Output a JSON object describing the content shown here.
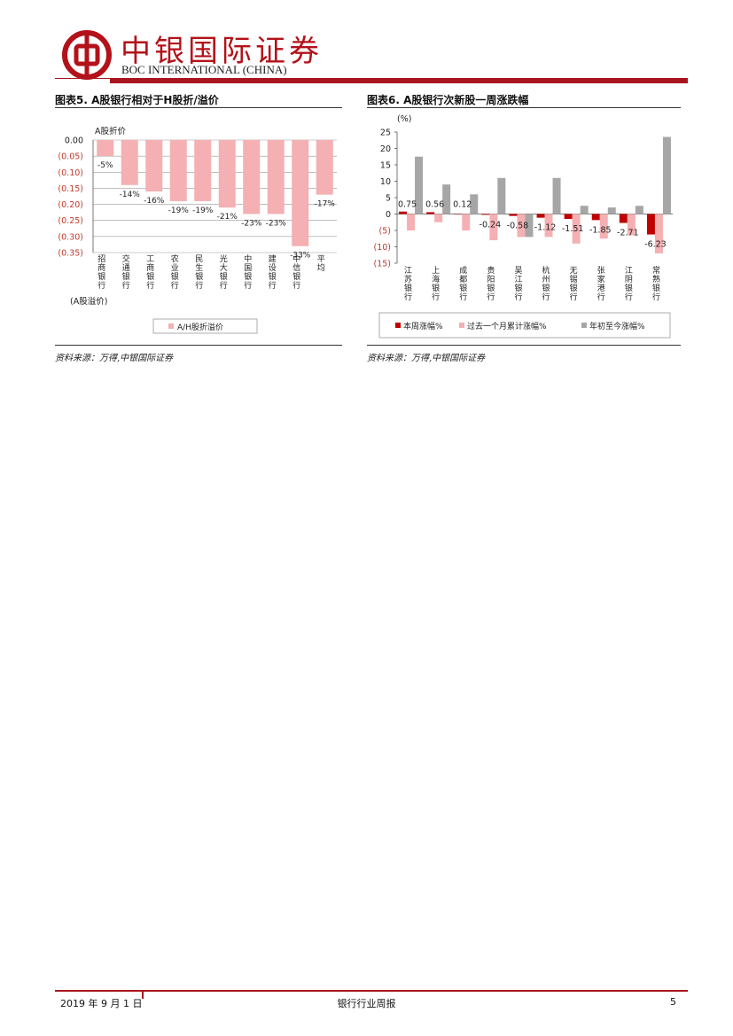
{
  "header": {
    "brand_cn": "中银国际证券",
    "brand_en": "BOC INTERNATIONAL (CHINA)",
    "brand_color": "#b3121a"
  },
  "figure5": {
    "title": "图表5. A股银行相对于H股折/溢价",
    "source": "资料来源：万得,中银国际证券",
    "y_axis_caption_top": "A股折价",
    "y_axis_caption_bottom": "(A股溢价)",
    "legend_label": "A/H股折溢价",
    "bar_color": "#f4b0b2",
    "chart_data": {
      "type": "bar",
      "categories": [
        "招商银行",
        "交通银行",
        "工商银行",
        "农业银行",
        "民生银行",
        "光大银行",
        "中国银行",
        "建设银行",
        "中信银行",
        "平均"
      ],
      "values": [
        -0.05,
        -0.14,
        -0.16,
        -0.19,
        -0.19,
        -0.21,
        -0.23,
        -0.23,
        -0.33,
        -0.17
      ],
      "data_labels": [
        "-5%",
        "-14%",
        "-16%",
        "-19%",
        "-19%",
        "-21%",
        "-23%",
        "-23%",
        "-33%",
        "-17%"
      ],
      "yticks": [
        "0.00",
        "(0.05)",
        "(0.10)",
        "(0.15)",
        "(0.20)",
        "(0.25)",
        "(0.30)",
        "(0.35)"
      ],
      "ylim": [
        -0.35,
        0
      ],
      "grid": true
    }
  },
  "figure6": {
    "title": "图表6. A股银行次新股一周涨跌幅",
    "source": "资料来源：万得,中银国际证券",
    "y_unit": "(%)",
    "chart_data": {
      "type": "bar",
      "categories": [
        "江苏银行",
        "上海银行",
        "成都银行",
        "贵阳银行",
        "吴江银行",
        "杭州银行",
        "无锡银行",
        "张家港行",
        "江阴银行",
        "常熟银行"
      ],
      "series": [
        {
          "name": "本周涨幅%",
          "color": "#c00000",
          "values": [
            0.75,
            0.56,
            0.12,
            -0.24,
            -0.58,
            -1.12,
            -1.51,
            -1.85,
            -2.71,
            -6.23
          ]
        },
        {
          "name": "过去一个月累计涨幅%",
          "color": "#f4b0b2",
          "values": [
            -5.0,
            -2.5,
            -5.0,
            -8.0,
            -7.0,
            -7.0,
            -9.0,
            -7.5,
            -6.5,
            -12.0
          ]
        },
        {
          "name": "年初至今涨幅%",
          "color": "#a6a6a6",
          "values": [
            17.5,
            9.0,
            6.0,
            11.0,
            -7.0,
            11.0,
            2.5,
            2.0,
            2.5,
            23.5
          ]
        }
      ],
      "data_labels": [
        "0.75",
        "0.56",
        "0.12",
        "-0.24",
        "-0.58",
        "-1.12",
        "-1.51",
        "-1.85",
        "-2.71",
        "-6.23"
      ],
      "yticks": [
        "25",
        "20",
        "15",
        "10",
        "5",
        "0",
        "(5)",
        "(10)",
        "(15)"
      ],
      "ylim": [
        -15,
        25
      ],
      "legend_position": "bottom"
    }
  },
  "footer": {
    "date": "2019 年 9 月 1 日",
    "report_name": "银行行业周报",
    "page_number": "5"
  }
}
